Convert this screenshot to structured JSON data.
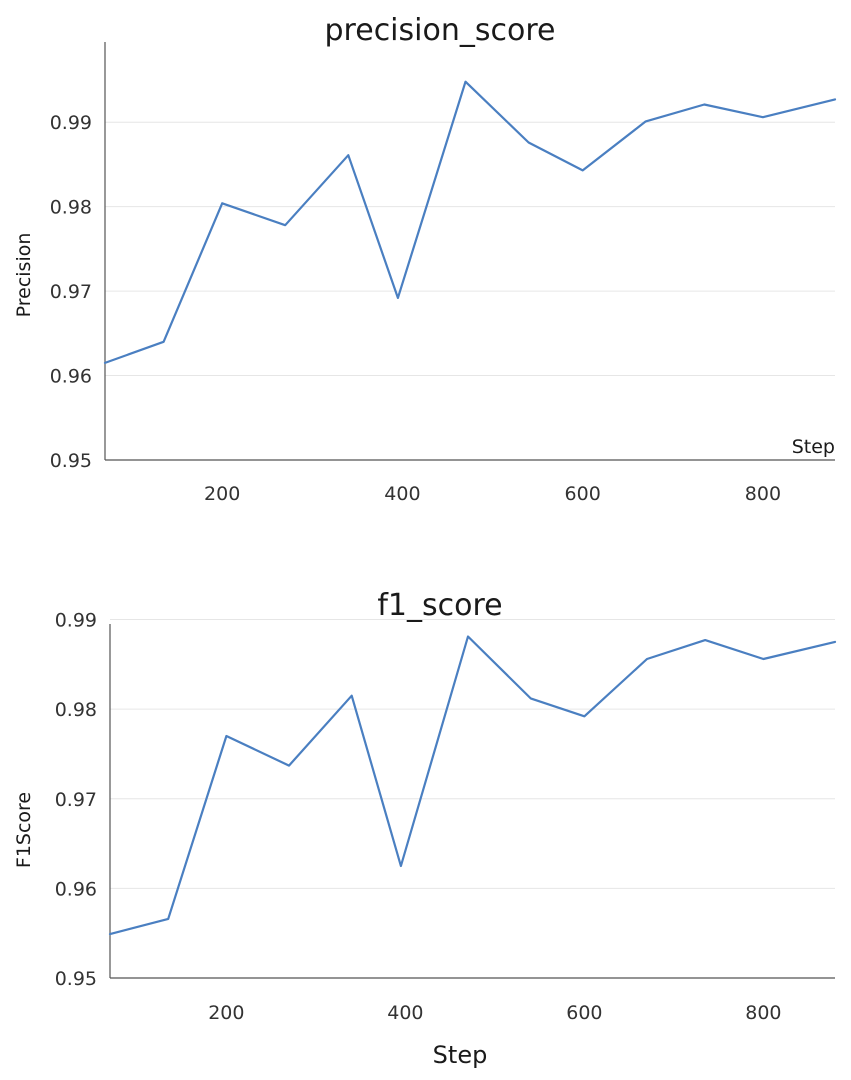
{
  "colors": {
    "series": "#4a7fc1"
  },
  "chart_data": [
    {
      "type": "line",
      "title": "precision_score",
      "xlabel": "Step",
      "ylabel": "Precision",
      "xlim": [
        70,
        880
      ],
      "ylim": [
        0.95,
        0.9995
      ],
      "xticks": [
        200,
        400,
        600,
        800
      ],
      "yticks": [
        0.95,
        0.96,
        0.97,
        0.98,
        0.99
      ],
      "grid": true,
      "series": [
        {
          "x": [
            70,
            135,
            200,
            270,
            340,
            395,
            470,
            540,
            600,
            670,
            735,
            800,
            880
          ],
          "y": [
            0.9615,
            0.964,
            0.9804,
            0.9778,
            0.9861,
            0.9692,
            0.9948,
            0.9876,
            0.9843,
            0.9901,
            0.9921,
            0.9906,
            0.9927
          ]
        }
      ]
    },
    {
      "type": "line",
      "title": "f1_score",
      "xlabel": "Step",
      "ylabel": "F1Score",
      "xlim": [
        70,
        880
      ],
      "ylim": [
        0.95,
        0.9895
      ],
      "xticks": [
        200,
        400,
        600,
        800
      ],
      "yticks": [
        0.95,
        0.96,
        0.97,
        0.98,
        0.99
      ],
      "grid": true,
      "series": [
        {
          "x": [
            70,
            135,
            200,
            270,
            340,
            395,
            470,
            540,
            600,
            670,
            735,
            800,
            880
          ],
          "y": [
            0.9549,
            0.9566,
            0.977,
            0.9737,
            0.9815,
            0.9625,
            0.9881,
            0.9812,
            0.9792,
            0.9856,
            0.9877,
            0.9856,
            0.9875
          ]
        }
      ]
    }
  ]
}
